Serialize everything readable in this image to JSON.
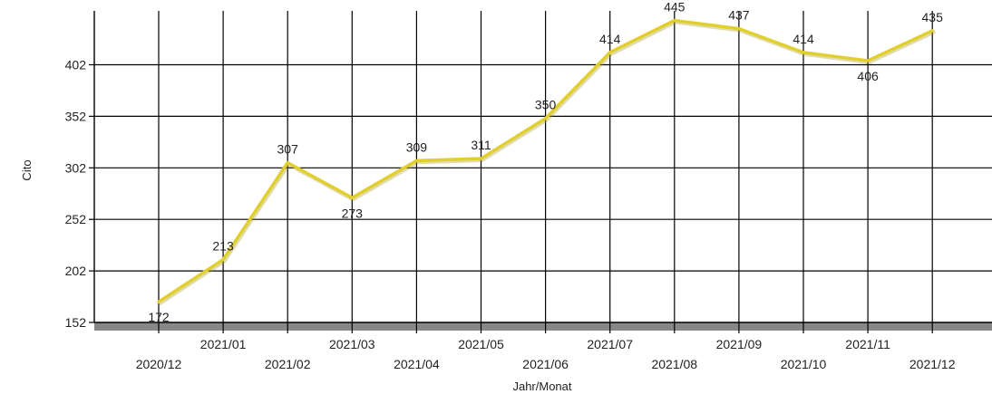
{
  "chart_data": {
    "type": "line",
    "title": "",
    "xlabel": "Jahr/Monat",
    "ylabel": "Cito",
    "categories": [
      "2020/12",
      "2021/01",
      "2021/02",
      "2021/03",
      "2021/04",
      "2021/05",
      "2021/06",
      "2021/07",
      "2021/08",
      "2021/09",
      "2021/10",
      "2021/11",
      "2021/12"
    ],
    "series": [
      {
        "values": [
          172,
          213,
          307,
          273,
          309,
          311,
          350,
          414,
          445,
          437,
          414,
          406,
          435
        ],
        "color": "#e0cf2e"
      }
    ],
    "yticks": [
      152,
      202,
      252,
      302,
      352,
      402
    ],
    "ylim": [
      152,
      470
    ],
    "grid": true,
    "legend": "none",
    "shadow_color": "#888888",
    "grid_color": "#000000"
  }
}
